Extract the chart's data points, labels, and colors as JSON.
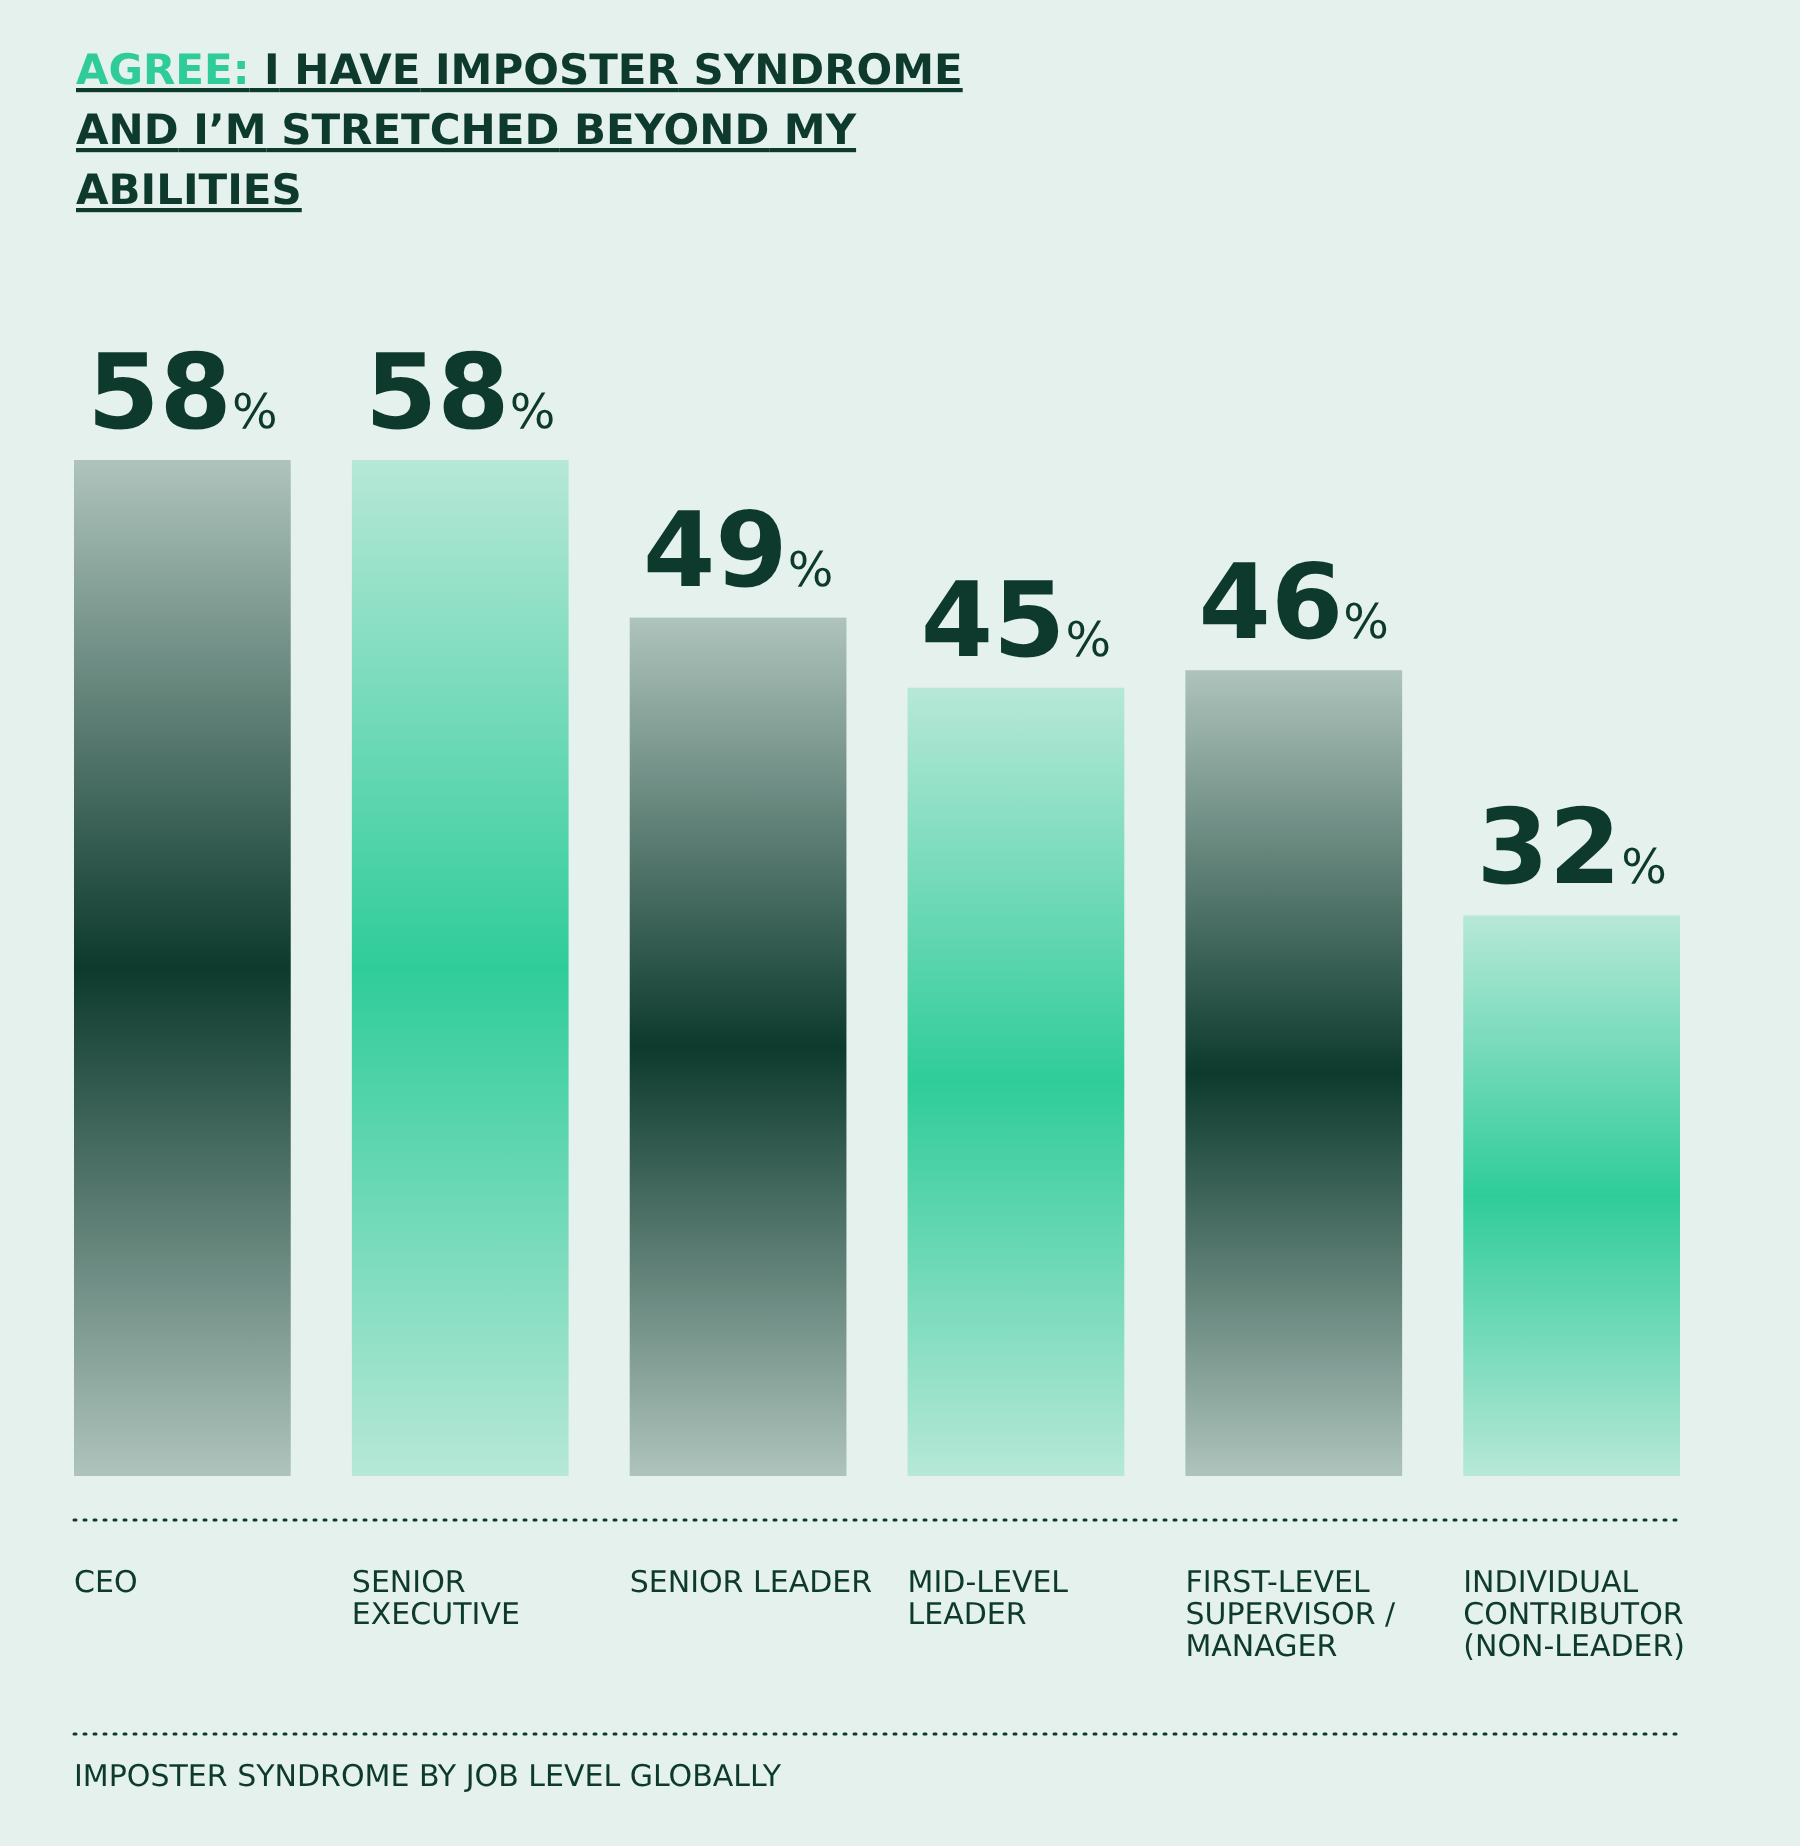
{
  "chart_data": {
    "type": "bar",
    "title": "AGREE: I HAVE IMPOSTER SYNDROME AND I’M STRETCHED BEYOND MY ABILITIES",
    "categories": [
      "CEO",
      "SENIOR EXECUTIVE",
      "SENIOR LEADER",
      "MID-LEVEL LEADER",
      "FIRST-LEVEL SUPERVISOR / MANAGER",
      "INDIVIDUAL CONTRIBUTOR (NON-LEADER)"
    ],
    "values": [
      58,
      58,
      49,
      45,
      46,
      32
    ],
    "colors": [
      "#0d3a2d",
      "#2fcc9a",
      "#0d3a2d",
      "#2fcc9a",
      "#0d3a2d",
      "#2fcc9a"
    ],
    "value_labels": [
      "58%",
      "58%",
      "49%",
      "45%",
      "46%",
      "32%"
    ],
    "annotations": [
      "IMPOSTER SYNDROME BY JOB LEVEL GLOBALLY"
    ]
  }
}
